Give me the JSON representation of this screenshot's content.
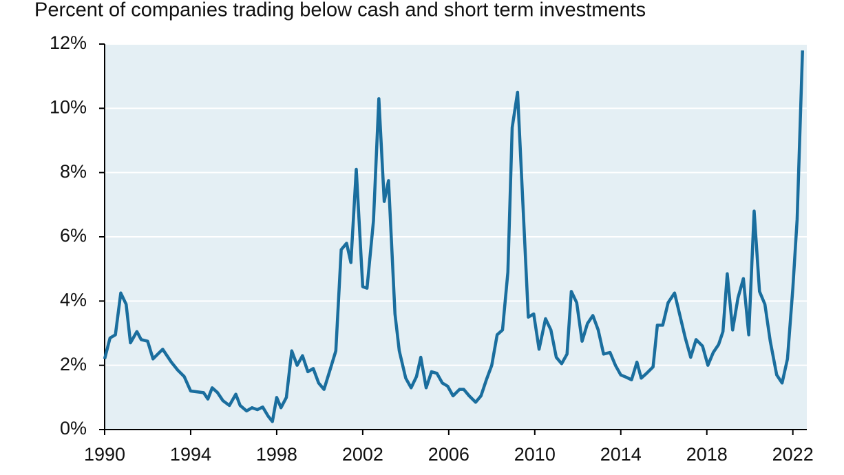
{
  "chart_data": {
    "type": "line",
    "title": "Percent of companies trading below cash and short term investments",
    "xlim": [
      1990,
      2022.65
    ],
    "xticks": [
      1990,
      1994,
      1998,
      2002,
      2006,
      2010,
      2014,
      2018,
      2022
    ],
    "ylim": [
      0,
      12
    ],
    "yticks": [
      {
        "value": 0,
        "label": "0%"
      },
      {
        "value": 2,
        "label": "2%"
      },
      {
        "value": 4,
        "label": "4%"
      },
      {
        "value": 6,
        "label": "6%"
      },
      {
        "value": 8,
        "label": "8%"
      },
      {
        "value": 10,
        "label": "10%"
      },
      {
        "value": 12,
        "label": "12%"
      }
    ],
    "grid": true,
    "background": "#e4eff4",
    "x": [
      1990.0,
      1990.25,
      1990.5,
      1990.75,
      1991.0,
      1991.2,
      1991.5,
      1991.7,
      1992.0,
      1992.25,
      1992.7,
      1993.1,
      1993.4,
      1993.7,
      1994.0,
      1994.6,
      1994.8,
      1995.0,
      1995.25,
      1995.5,
      1995.8,
      1996.1,
      1996.3,
      1996.6,
      1996.85,
      1997.1,
      1997.35,
      1997.6,
      1997.8,
      1998.0,
      1998.2,
      1998.45,
      1998.7,
      1998.95,
      1999.2,
      1999.45,
      1999.7,
      1999.95,
      2000.2,
      2000.5,
      2000.75,
      2001.0,
      2001.25,
      2001.45,
      2001.7,
      2002.0,
      2002.2,
      2002.5,
      2002.75,
      2003.0,
      2003.2,
      2003.5,
      2003.7,
      2004.0,
      2004.25,
      2004.5,
      2004.7,
      2004.95,
      2005.2,
      2005.45,
      2005.7,
      2005.95,
      2006.2,
      2006.5,
      2006.7,
      2006.95,
      2007.25,
      2007.5,
      2007.75,
      2008.0,
      2008.25,
      2008.5,
      2008.75,
      2008.95,
      2009.2,
      2009.45,
      2009.7,
      2009.95,
      2010.2,
      2010.5,
      2010.75,
      2011.0,
      2011.25,
      2011.5,
      2011.7,
      2011.95,
      2012.2,
      2012.45,
      2012.7,
      2012.95,
      2013.2,
      2013.5,
      2013.75,
      2014.0,
      2014.25,
      2014.5,
      2014.75,
      2014.95,
      2015.2,
      2015.5,
      2015.7,
      2015.95,
      2016.2,
      2016.5,
      2016.75,
      2017.0,
      2017.25,
      2017.5,
      2017.8,
      2018.05,
      2018.3,
      2018.55,
      2018.75,
      2018.95,
      2019.2,
      2019.45,
      2019.7,
      2019.95,
      2020.2,
      2020.45,
      2020.7,
      2020.95,
      2021.25,
      2021.5,
      2021.75,
      2022.0,
      2022.2,
      2022.45
    ],
    "series": [
      {
        "name": "Percent of companies",
        "color": "#1a6e9e",
        "values": [
          2.2,
          2.85,
          2.95,
          4.25,
          3.9,
          2.7,
          3.05,
          2.8,
          2.75,
          2.2,
          2.5,
          2.1,
          1.85,
          1.65,
          1.2,
          1.15,
          0.95,
          1.3,
          1.15,
          0.9,
          0.75,
          1.1,
          0.75,
          0.58,
          0.68,
          0.62,
          0.7,
          0.42,
          0.25,
          1.0,
          0.68,
          1.0,
          2.45,
          2.0,
          2.3,
          1.8,
          1.9,
          1.45,
          1.25,
          1.9,
          2.45,
          5.6,
          5.8,
          5.2,
          8.1,
          4.45,
          4.4,
          6.5,
          10.3,
          7.1,
          7.75,
          3.6,
          2.45,
          1.6,
          1.3,
          1.65,
          2.25,
          1.3,
          1.8,
          1.75,
          1.45,
          1.35,
          1.05,
          1.25,
          1.25,
          1.05,
          0.85,
          1.05,
          1.55,
          2.0,
          2.95,
          3.1,
          4.9,
          9.4,
          10.5,
          7.0,
          3.5,
          3.6,
          2.5,
          3.45,
          3.1,
          2.25,
          2.05,
          2.35,
          4.3,
          3.95,
          2.75,
          3.3,
          3.55,
          3.1,
          2.35,
          2.4,
          2.0,
          1.7,
          1.63,
          1.55,
          2.1,
          1.6,
          1.75,
          1.95,
          3.25,
          3.25,
          3.95,
          4.25,
          3.55,
          2.85,
          2.25,
          2.8,
          2.6,
          2.0,
          2.4,
          2.65,
          3.05,
          4.85,
          3.1,
          4.1,
          4.7,
          2.95,
          6.8,
          4.3,
          3.9,
          2.75,
          1.7,
          1.45,
          2.2,
          4.4,
          6.55,
          11.8
        ]
      }
    ]
  }
}
